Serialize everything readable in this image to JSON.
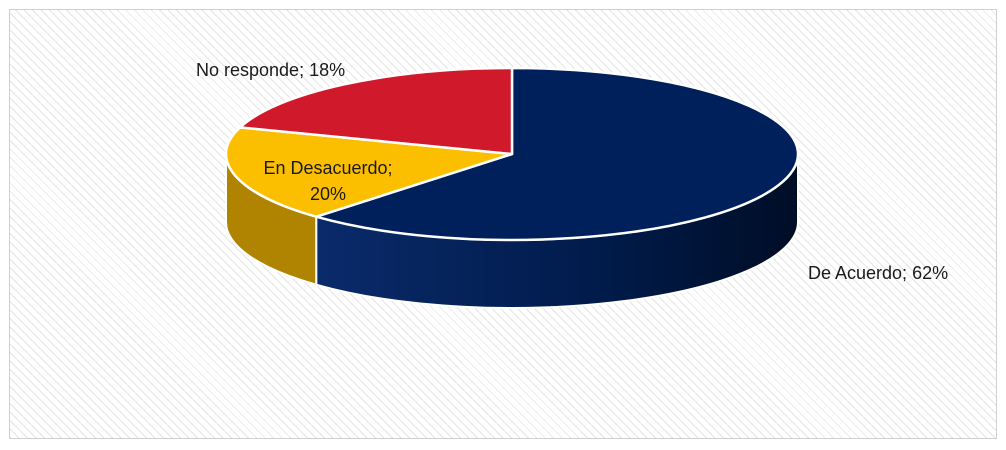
{
  "chart_data": {
    "type": "pie",
    "title": "",
    "slices": [
      {
        "label": "De Acuerdo; 62%",
        "value": 62,
        "color": "#00205b"
      },
      {
        "label": "No responde; 18%",
        "value": 18,
        "color": "#fcbf00"
      },
      {
        "label": "En Desacuerdo; 20%",
        "label_lines": [
          "En Desacuerdo;",
          "20%"
        ],
        "value": 20,
        "color": "#d0192b"
      }
    ],
    "legend": "none"
  }
}
